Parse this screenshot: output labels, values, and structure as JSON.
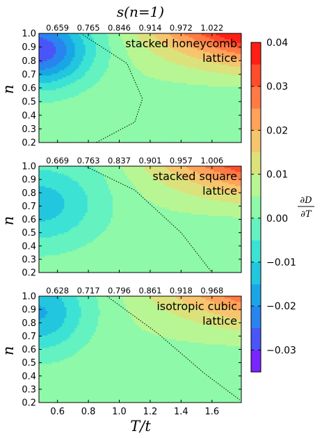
{
  "chart_data": {
    "type": "heatmap",
    "title": "s(n=1)",
    "xlabel": "T/t",
    "ylabel": "n",
    "xlim": [
      0.48,
      1.79
    ],
    "ylim": [
      0.2,
      1.0
    ],
    "x_ticks": [
      "0.6",
      "0.8",
      "1.0",
      "1.2",
      "1.4",
      "1.6"
    ],
    "y_ticks": [
      "0.2",
      "0.3",
      "0.4",
      "0.5",
      "0.6",
      "0.7",
      "0.8",
      "0.9",
      "1.0"
    ],
    "colorbar": {
      "label": "∂D/∂T",
      "label_num": "∂D",
      "label_den": "∂T",
      "min": -0.035,
      "max": 0.04,
      "ticks": [
        "0.04",
        "0.03",
        "0.02",
        "0.01",
        "0.00",
        "−0.01",
        "−0.02",
        "−0.03"
      ],
      "levels": [
        -0.035,
        -0.03,
        -0.025,
        -0.02,
        -0.015,
        -0.01,
        -0.005,
        0.0,
        0.005,
        0.01,
        0.015,
        0.02,
        0.025,
        0.03,
        0.035,
        0.04
      ],
      "colors": [
        "#7a24ff",
        "#4a55f8",
        "#2a84ee",
        "#1aa6e6",
        "#22c6de",
        "#3ce3d4",
        "#64f2c0",
        "#8ef9a8",
        "#b8f694",
        "#dbe27c",
        "#f6c56e",
        "#ffa25a",
        "#ff7a44",
        "#ff4d2c",
        "#ff1e14"
      ]
    },
    "panels": [
      {
        "name_line1": "stacked honeycomb",
        "name_line2": "lattice",
        "top_axis_labels": [
          "0.659",
          "0.765",
          "0.846",
          "0.914",
          "0.972",
          "1.022"
        ],
        "params": {
          "cold_center_n": 0.88,
          "cold_depth": -0.032,
          "cold_width_T": 0.32,
          "cold_width_n": 0.26,
          "hot_amp": 0.042,
          "zero_line": [
            [
              0.75,
              1.0
            ],
            [
              1.05,
              0.78
            ],
            [
              1.15,
              0.52
            ],
            [
              1.1,
              0.35
            ],
            [
              0.85,
              0.2
            ]
          ]
        }
      },
      {
        "name_line1": "stacked square",
        "name_line2": "lattice",
        "top_axis_labels": [
          "0.669",
          "0.763",
          "0.837",
          "0.901",
          "0.957",
          "1.006"
        ],
        "params": {
          "cold_center_n": 0.72,
          "cold_depth": -0.016,
          "cold_width_T": 0.4,
          "cold_width_n": 0.32,
          "hot_amp": 0.032,
          "zero_line": [
            [
              0.78,
              1.0
            ],
            [
              1.1,
              0.82
            ],
            [
              1.4,
              0.5
            ],
            [
              1.6,
              0.2
            ]
          ]
        }
      },
      {
        "name_line1": "isotropic cubic",
        "name_line2": "lattice",
        "top_axis_labels": [
          "0.628",
          "0.717",
          "0.796",
          "0.861",
          "0.918",
          "0.968"
        ],
        "params": {
          "cold_center_n": 0.88,
          "cold_depth": -0.019,
          "cold_width_T": 0.3,
          "cold_width_n": 0.3,
          "hot_amp": 0.026,
          "zero_line": [
            [
              0.92,
              1.0
            ],
            [
              1.25,
              0.72
            ],
            [
              1.55,
              0.42
            ],
            [
              1.78,
              0.22
            ]
          ]
        }
      }
    ]
  }
}
